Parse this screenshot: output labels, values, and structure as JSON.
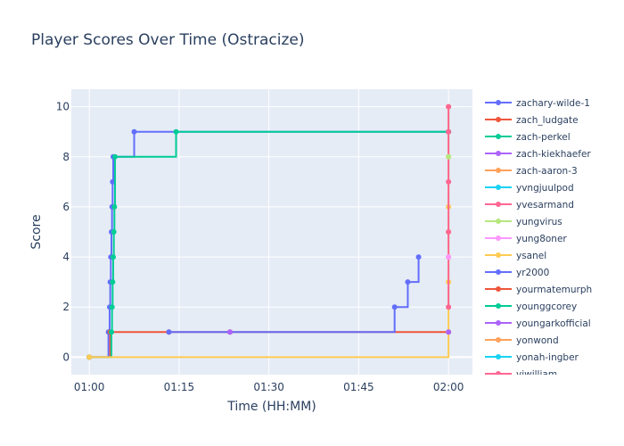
{
  "chart_data": {
    "type": "line",
    "line_shape": "step",
    "title": "Player Scores Over Time (Ostracize)",
    "xlabel": "Time (HH:MM)",
    "ylabel": "Score",
    "x_ticks": [
      "01:00",
      "01:15",
      "01:30",
      "01:45",
      "02:00"
    ],
    "x_tick_minutes": [
      60,
      75,
      90,
      105,
      120
    ],
    "xlim_minutes": [
      57,
      124
    ],
    "y_ticks": [
      0,
      2,
      4,
      6,
      8,
      10
    ],
    "ylim": [
      -0.7,
      10.7
    ],
    "grid": true,
    "legend_position": "right",
    "plot_background": "#e5ecf6",
    "series": [
      {
        "name": "zachary-wilde-1",
        "color": "#636efa",
        "x": [
          60,
          63.2,
          63.4,
          63.5,
          63.6,
          63.7,
          63.8,
          63.9,
          64.0,
          67.5,
          120.0
        ],
        "y": [
          0,
          1,
          2,
          3,
          4,
          5,
          6,
          7,
          8,
          9,
          9
        ]
      },
      {
        "name": "zach_ludgate",
        "color": "#ef553b",
        "x": [
          60,
          63.5,
          73.3,
          83.5,
          120.0
        ],
        "y": [
          0,
          1,
          1,
          1,
          1
        ]
      },
      {
        "name": "zach-perkel",
        "color": "#00cc96",
        "x": [
          60,
          63.7,
          63.8,
          63.9,
          64.0,
          64.1,
          64.2,
          64.3,
          74.5,
          120.0
        ],
        "y": [
          0,
          1,
          2,
          3,
          4,
          5,
          6,
          8,
          9,
          9
        ]
      },
      {
        "name": "zach-kiekhaefer",
        "color": "#ab63fa",
        "x": [],
        "y": []
      },
      {
        "name": "zach-aaron-3",
        "color": "#ffa15a",
        "x": [],
        "y": []
      },
      {
        "name": "yvngjuulpod",
        "color": "#19d3f3",
        "x": [],
        "y": []
      },
      {
        "name": "yvesarmand",
        "color": "#ff6692",
        "x": [],
        "y": []
      },
      {
        "name": "yungvirus",
        "color": "#b6e880",
        "x": [],
        "y": []
      },
      {
        "name": "yung8oner",
        "color": "#ff97ff",
        "x": [],
        "y": []
      },
      {
        "name": "ysanel",
        "color": "#fecb52",
        "x": [
          60,
          120.0,
          120.0,
          120.0,
          120.0,
          120.0,
          120.0
        ],
        "y": [
          0,
          1,
          3,
          5,
          6,
          8,
          10
        ]
      },
      {
        "name": "yr2000",
        "color": "#636efa",
        "x": [
          73.3,
          111.0,
          113.2,
          115.0
        ],
        "y": [
          1,
          2,
          3,
          4
        ]
      },
      {
        "name": "yourmatemurph",
        "color": "#ef553b",
        "x": [],
        "y": []
      },
      {
        "name": "younggcorey",
        "color": "#00cc96",
        "x": [],
        "y": []
      },
      {
        "name": "youngarkofficial",
        "color": "#ab63fa",
        "x": [],
        "y": []
      },
      {
        "name": "yonwond",
        "color": "#ffa15a",
        "x": [],
        "y": []
      },
      {
        "name": "yonah-ingber",
        "color": "#19d3f3",
        "x": [],
        "y": []
      },
      {
        "name": "yiwilliam",
        "color": "#ff6692",
        "x": [
          120.0,
          120.0,
          120.0,
          120.0,
          120.0,
          120.0
        ],
        "y": [
          2,
          4,
          5,
          7,
          9,
          10
        ]
      }
    ],
    "extra_markers": [
      {
        "color": "#ab63fa",
        "x": [
          83.5,
          120.0
        ],
        "y": [
          1,
          1
        ]
      },
      {
        "color": "#b6e880",
        "x": [
          120.0,
          120.0
        ],
        "y": [
          4,
          8
        ]
      },
      {
        "color": "#ff97ff",
        "x": [
          120.0
        ],
        "y": [
          4
        ]
      }
    ]
  }
}
